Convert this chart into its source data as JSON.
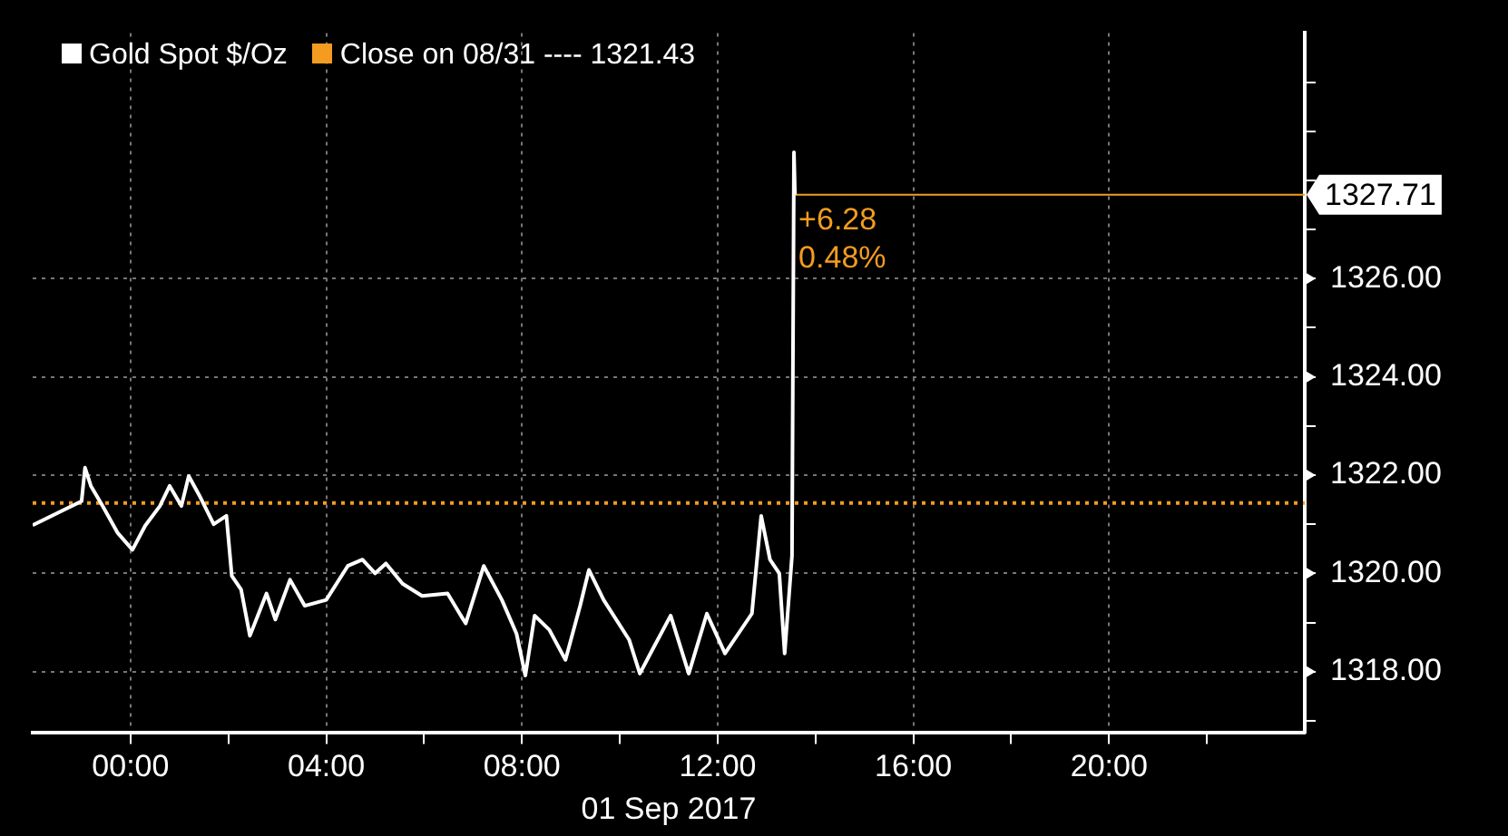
{
  "chart_data": {
    "type": "line",
    "xlabel": "01 Sep 2017",
    "x": [
      -2,
      -1.0,
      -0.93,
      -0.81,
      -0.57,
      -0.26,
      0.04,
      0.3,
      0.6,
      0.8,
      1.04,
      1.19,
      1.41,
      1.7,
      1.96,
      2.07,
      2.26,
      2.44,
      2.78,
      2.96,
      3.26,
      3.56,
      4.0,
      4.44,
      4.74,
      5.0,
      5.22,
      5.56,
      5.96,
      6.48,
      6.85,
      7.22,
      7.59,
      7.89,
      8.07,
      8.26,
      8.56,
      8.89,
      9.19,
      9.37,
      9.67,
      10.19,
      10.41,
      10.67,
      11.04,
      11.41,
      11.78,
      12.15,
      12.7,
      12.89,
      13.07,
      13.26,
      13.37,
      13.52,
      13.56,
      13.58
    ],
    "series": [
      {
        "name": "Gold Spot $/Oz",
        "color": "#ffffff",
        "values": [
          1320.98,
          1321.47,
          1322.15,
          1321.78,
          1321.37,
          1320.82,
          1320.48,
          1320.97,
          1321.37,
          1321.78,
          1321.37,
          1321.98,
          1321.58,
          1321.0,
          1321.17,
          1319.95,
          1319.67,
          1318.73,
          1319.59,
          1319.06,
          1319.87,
          1319.34,
          1319.46,
          1320.15,
          1320.28,
          1320.0,
          1320.2,
          1319.79,
          1319.54,
          1319.59,
          1318.98,
          1320.15,
          1319.46,
          1318.77,
          1317.92,
          1319.14,
          1318.85,
          1318.24,
          1319.34,
          1320.07,
          1319.46,
          1318.65,
          1317.96,
          1318.45,
          1319.14,
          1317.96,
          1319.18,
          1318.37,
          1319.18,
          1321.17,
          1320.28,
          1320.0,
          1318.37,
          1320.36,
          1328.57,
          1327.71
        ]
      }
    ],
    "xlim": [
      -2,
      24
    ],
    "xticks": [
      {
        "value": 0,
        "label": "00:00"
      },
      {
        "value": 2,
        "label": null
      },
      {
        "value": 4,
        "label": "04:00"
      },
      {
        "value": 6,
        "label": null
      },
      {
        "value": 8,
        "label": "08:00"
      },
      {
        "value": 10,
        "label": null
      },
      {
        "value": 12,
        "label": "12:00"
      },
      {
        "value": 14,
        "label": null
      },
      {
        "value": 16,
        "label": "16:00"
      },
      {
        "value": 18,
        "label": null
      },
      {
        "value": 20,
        "label": "20:00"
      },
      {
        "value": 22,
        "label": null
      }
    ],
    "ylim": [
      1316.75,
      1331
    ],
    "yticks": [
      {
        "value": 1317,
        "label": null
      },
      {
        "value": 1318,
        "label": "1318.00"
      },
      {
        "value": 1319,
        "label": null
      },
      {
        "value": 1320,
        "label": "1320.00"
      },
      {
        "value": 1321,
        "label": null
      },
      {
        "value": 1322,
        "label": "1322.00"
      },
      {
        "value": 1323,
        "label": null
      },
      {
        "value": 1324,
        "label": "1324.00"
      },
      {
        "value": 1325,
        "label": null
      },
      {
        "value": 1326,
        "label": "1326.00"
      },
      {
        "value": 1327,
        "label": null
      },
      {
        "value": 1328,
        "label": null
      },
      {
        "value": 1329,
        "label": null
      },
      {
        "value": 1330,
        "label": null
      }
    ],
    "ref_lines": [
      {
        "axis": "y",
        "value": 1321.43,
        "label": "Close on 08/31 ---- 1321.43",
        "color": "#f39c1f",
        "line_style": "dotted"
      },
      {
        "axis": "y",
        "value": 1327.71,
        "label": "1327.71",
        "color": "#f39c1f",
        "line_style": "solid"
      }
    ],
    "annotations": [
      "+6.28",
      "0.48%"
    ],
    "grid": true,
    "legend": "top left",
    "line_style": "solid",
    "marker": "none"
  }
}
